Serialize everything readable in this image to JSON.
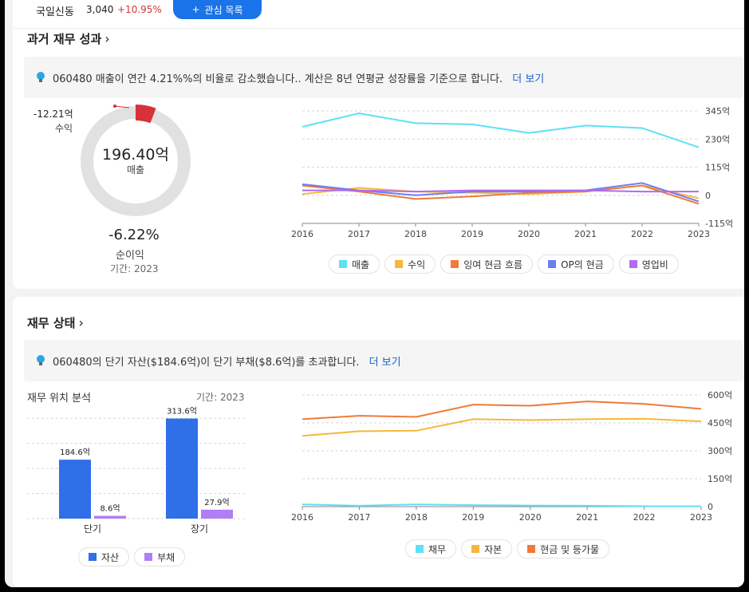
{
  "topbar": {
    "stock_name": "국일신동",
    "price": "3,040",
    "change": "+10.95%",
    "watch_button": "관심 목록"
  },
  "past_performance": {
    "title": "과거 재무 성과",
    "insight": "060480 매출이 연간 4.21%%의 비율로 감소했습니다.. 계산은 8년 연평균 성장률을 기준으로 합니다.",
    "more": "더 보기",
    "donut": {
      "revenue_value": "196.40억",
      "revenue_label": "매출",
      "earnings_value": "-12.21억",
      "earnings_label": "수익",
      "margin_value": "-6.22%",
      "margin_label": "순이익",
      "period": "기간: 2023"
    },
    "legend": [
      "매출",
      "수익",
      "잉여 현금 흐름",
      "OP의 현금",
      "영업비"
    ]
  },
  "financial_position": {
    "title": "재무 상태",
    "insight": "060480의 단기 자산($184.6억)이 단기 부채($8.6억)를 초과합니다.",
    "more": "더 보기",
    "bar_title": "재무 위치 분석",
    "period": "기간: 2023",
    "legend": [
      "자산",
      "부채"
    ],
    "line_legend": [
      "채무",
      "자본",
      "현금 및 등가물"
    ]
  },
  "chart_data": [
    {
      "type": "line",
      "x": [
        2016,
        2017,
        2018,
        2019,
        2020,
        2021,
        2022,
        2023
      ],
      "ylim": [
        -115,
        345
      ],
      "yticks": [
        "-115억",
        "0",
        "115억",
        "230억",
        "345억"
      ],
      "series": [
        {
          "name": "매출",
          "color": "#5ee0f5",
          "values": [
            280,
            335,
            295,
            290,
            255,
            285,
            275,
            196
          ]
        },
        {
          "name": "수익",
          "color": "#f5b83a",
          "values": [
            5,
            30,
            15,
            10,
            5,
            15,
            40,
            -12
          ]
        },
        {
          "name": "잉여 현금 흐름",
          "color": "#f07a3a",
          "values": [
            40,
            15,
            -15,
            -5,
            10,
            15,
            40,
            -35
          ]
        },
        {
          "name": "OP의 현금",
          "color": "#6b7ff0",
          "values": [
            45,
            20,
            0,
            15,
            15,
            20,
            50,
            -25
          ]
        },
        {
          "name": "영업비",
          "color": "#b06bf0",
          "values": [
            20,
            20,
            15,
            20,
            20,
            20,
            15,
            15
          ]
        }
      ]
    },
    {
      "type": "bar",
      "categories": [
        "단기",
        "장기"
      ],
      "series": [
        {
          "name": "자산",
          "color": "#2f6fe8",
          "values": [
            184.6,
            313.6
          ],
          "labels": [
            "184.6억",
            "313.6억"
          ]
        },
        {
          "name": "부채",
          "color": "#b07ef5",
          "values": [
            8.6,
            27.9
          ],
          "labels": [
            "8.6억",
            "27.9억"
          ]
        }
      ]
    },
    {
      "type": "line",
      "x": [
        2016,
        2017,
        2018,
        2019,
        2020,
        2021,
        2022,
        2023
      ],
      "ylim": [
        0,
        600
      ],
      "yticks": [
        "0",
        "150억",
        "300억",
        "450억",
        "600억"
      ],
      "series": [
        {
          "name": "채무",
          "color": "#5ee0f5",
          "values": [
            12,
            5,
            12,
            8,
            6,
            5,
            2,
            2
          ]
        },
        {
          "name": "자본",
          "color": "#f5b83a",
          "values": [
            380,
            405,
            408,
            470,
            465,
            470,
            472,
            458
          ]
        },
        {
          "name": "현금 및 등가물",
          "color": "#f07a3a",
          "values": [
            470,
            488,
            482,
            548,
            542,
            565,
            552,
            525
          ]
        }
      ]
    }
  ]
}
